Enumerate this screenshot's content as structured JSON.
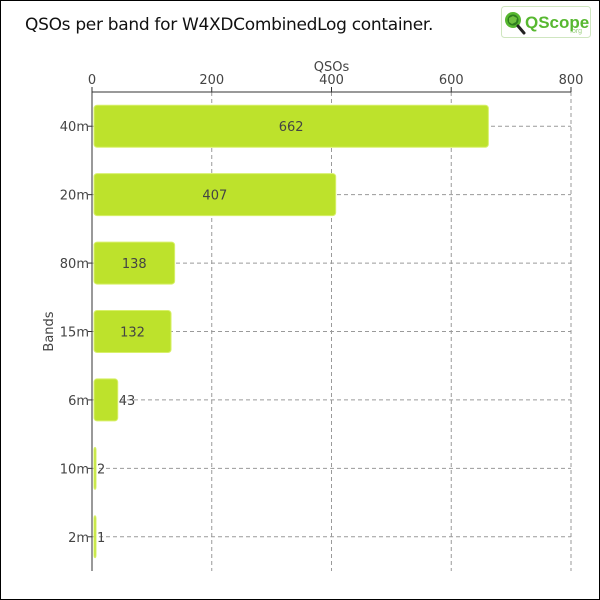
{
  "header": {
    "title": "QSOs per band for W4XDCombinedLog container.",
    "logo_text": "QScope",
    "logo_suffix": ".org"
  },
  "colors": {
    "bar": "#bde22c",
    "bar_stroke": "#d8f06a",
    "grid": "#9a9a9a",
    "axis": "#333333",
    "logo_green": "#57b830"
  },
  "chart_data": {
    "type": "bar",
    "orientation": "horizontal",
    "categories": [
      "40m",
      "20m",
      "80m",
      "15m",
      "6m",
      "10m",
      "2m"
    ],
    "values": [
      662,
      407,
      138,
      132,
      43,
      2,
      1
    ],
    "xlabel": "QSOs",
    "ylabel": "Bands",
    "xlim": [
      0,
      800
    ],
    "xticks": [
      0,
      200,
      400,
      600,
      800
    ],
    "x_axis_position": "top",
    "grid": true,
    "legend": "none"
  }
}
